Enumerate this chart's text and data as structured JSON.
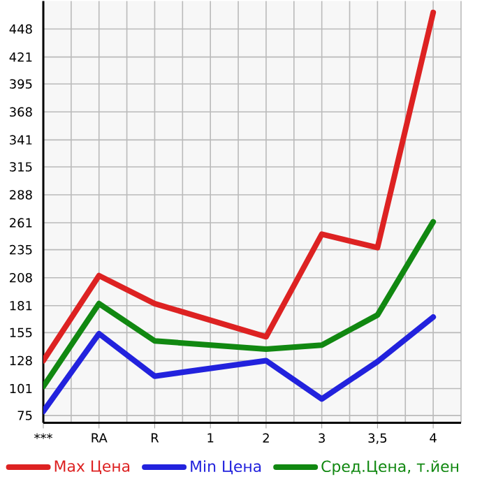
{
  "chart_data": {
    "type": "line",
    "categories": [
      "***",
      "RA",
      "R",
      "1",
      "2",
      "3",
      "3,5",
      "4"
    ],
    "series": [
      {
        "name": "Max Цена",
        "color": "#dd2222",
        "values": [
          128,
          210,
          183,
          null,
          151,
          250,
          237,
          464
        ]
      },
      {
        "name": "Min Цена",
        "color": "#2222dd",
        "values": [
          79,
          154,
          113,
          null,
          128,
          91,
          127,
          170
        ]
      },
      {
        "name": "Сред.Цена, т.йен",
        "color": "#118811",
        "values": [
          103,
          183,
          147,
          null,
          139,
          143,
          172,
          262
        ]
      }
    ],
    "ylim": [
      68,
      475
    ],
    "yticks": [
      75,
      101,
      128,
      155,
      181,
      208,
      235,
      261,
      288,
      315,
      341,
      368,
      395,
      421,
      448
    ],
    "grid": true,
    "legend": "bottom"
  }
}
